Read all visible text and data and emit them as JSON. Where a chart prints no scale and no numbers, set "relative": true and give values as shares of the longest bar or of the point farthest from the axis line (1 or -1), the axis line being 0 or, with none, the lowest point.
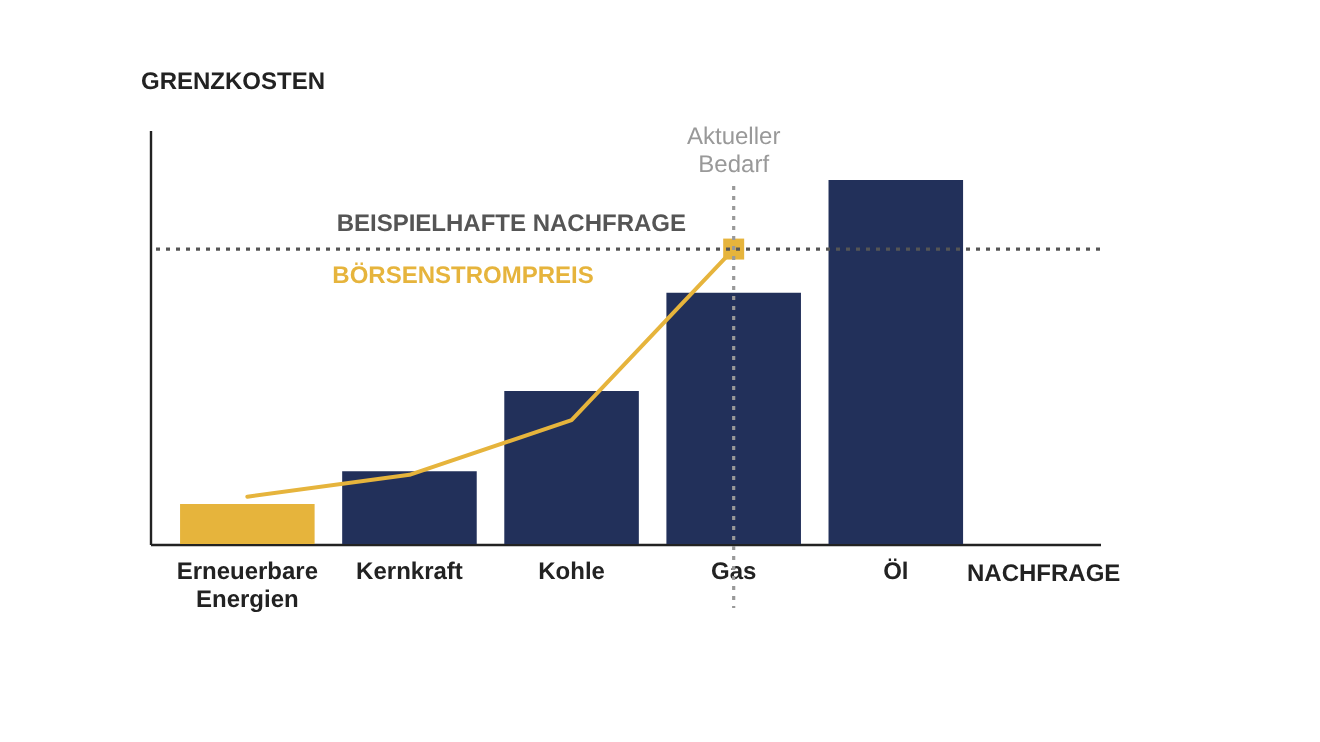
{
  "chart_data": {
    "type": "bar",
    "relative": true,
    "xlabel": "NACHFRAGE",
    "ylabel": "GRENZKOSTEN",
    "categories": [
      "Erneuerbare Energien",
      "Kernkraft",
      "Kohle",
      "Gas",
      "Öl"
    ],
    "series": [
      {
        "colors": [
          "#e6b43c",
          "#22305a",
          "#22305a",
          "#22305a",
          "#22305a"
        ],
        "values": [
          0.11,
          0.2,
          0.42,
          0.69,
          1
        ]
      },
      {
        "type": "line",
        "name": "BÖRSENSTROMPREIS",
        "color": "#e6b43c",
        "marker": "none",
        "values": [
          0.13,
          0.19,
          0.34,
          0.81,
          null
        ]
      },
      {
        "type": "scatter",
        "color": "#e6b43c",
        "marker": "square",
        "values": [
          null,
          null,
          null,
          0.81,
          null
        ]
      }
    ],
    "ref_lines": [
      {
        "axis": "y",
        "value": 0.81,
        "label": "BEISPIELHAFTE NACHFRAGE",
        "color": "#555555",
        "line_style": "dotted"
      },
      {
        "axis": "x",
        "value": "Gas",
        "label": "Aktueller Bedarf",
        "color": "#999999",
        "line_style": "dotted"
      }
    ]
  }
}
